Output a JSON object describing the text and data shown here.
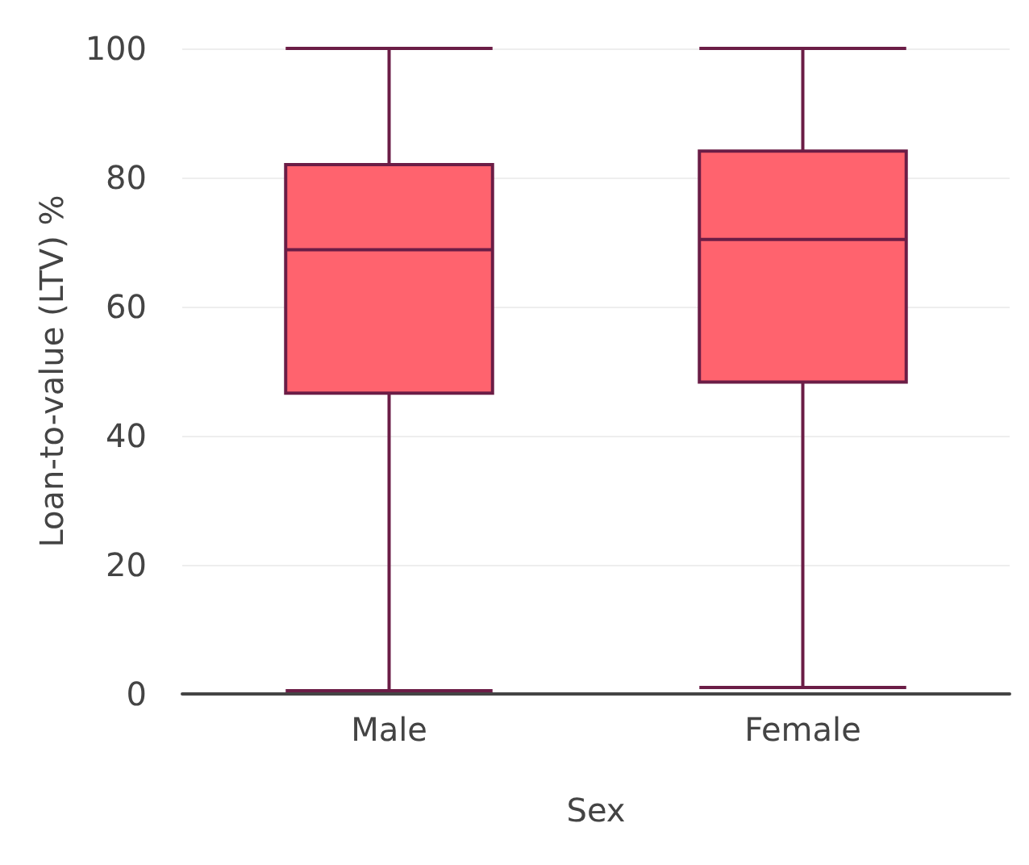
{
  "chart_data": {
    "type": "box",
    "xlabel": "Sex",
    "ylabel": "Loan-to-value (LTV) %",
    "categories": [
      "Male",
      "Female"
    ],
    "boxes": [
      {
        "low": 0.5,
        "q1": 46.6,
        "median": 68.8,
        "q3": 82,
        "high": 100
      },
      {
        "low": 1,
        "q1": 48.3,
        "median": 70.4,
        "q3": 84.1,
        "high": 100
      }
    ],
    "color": "#ff636e",
    "ylim": [
      0,
      100
    ],
    "yticks": [
      0,
      20,
      40,
      60,
      80,
      100
    ],
    "grid": "y"
  }
}
